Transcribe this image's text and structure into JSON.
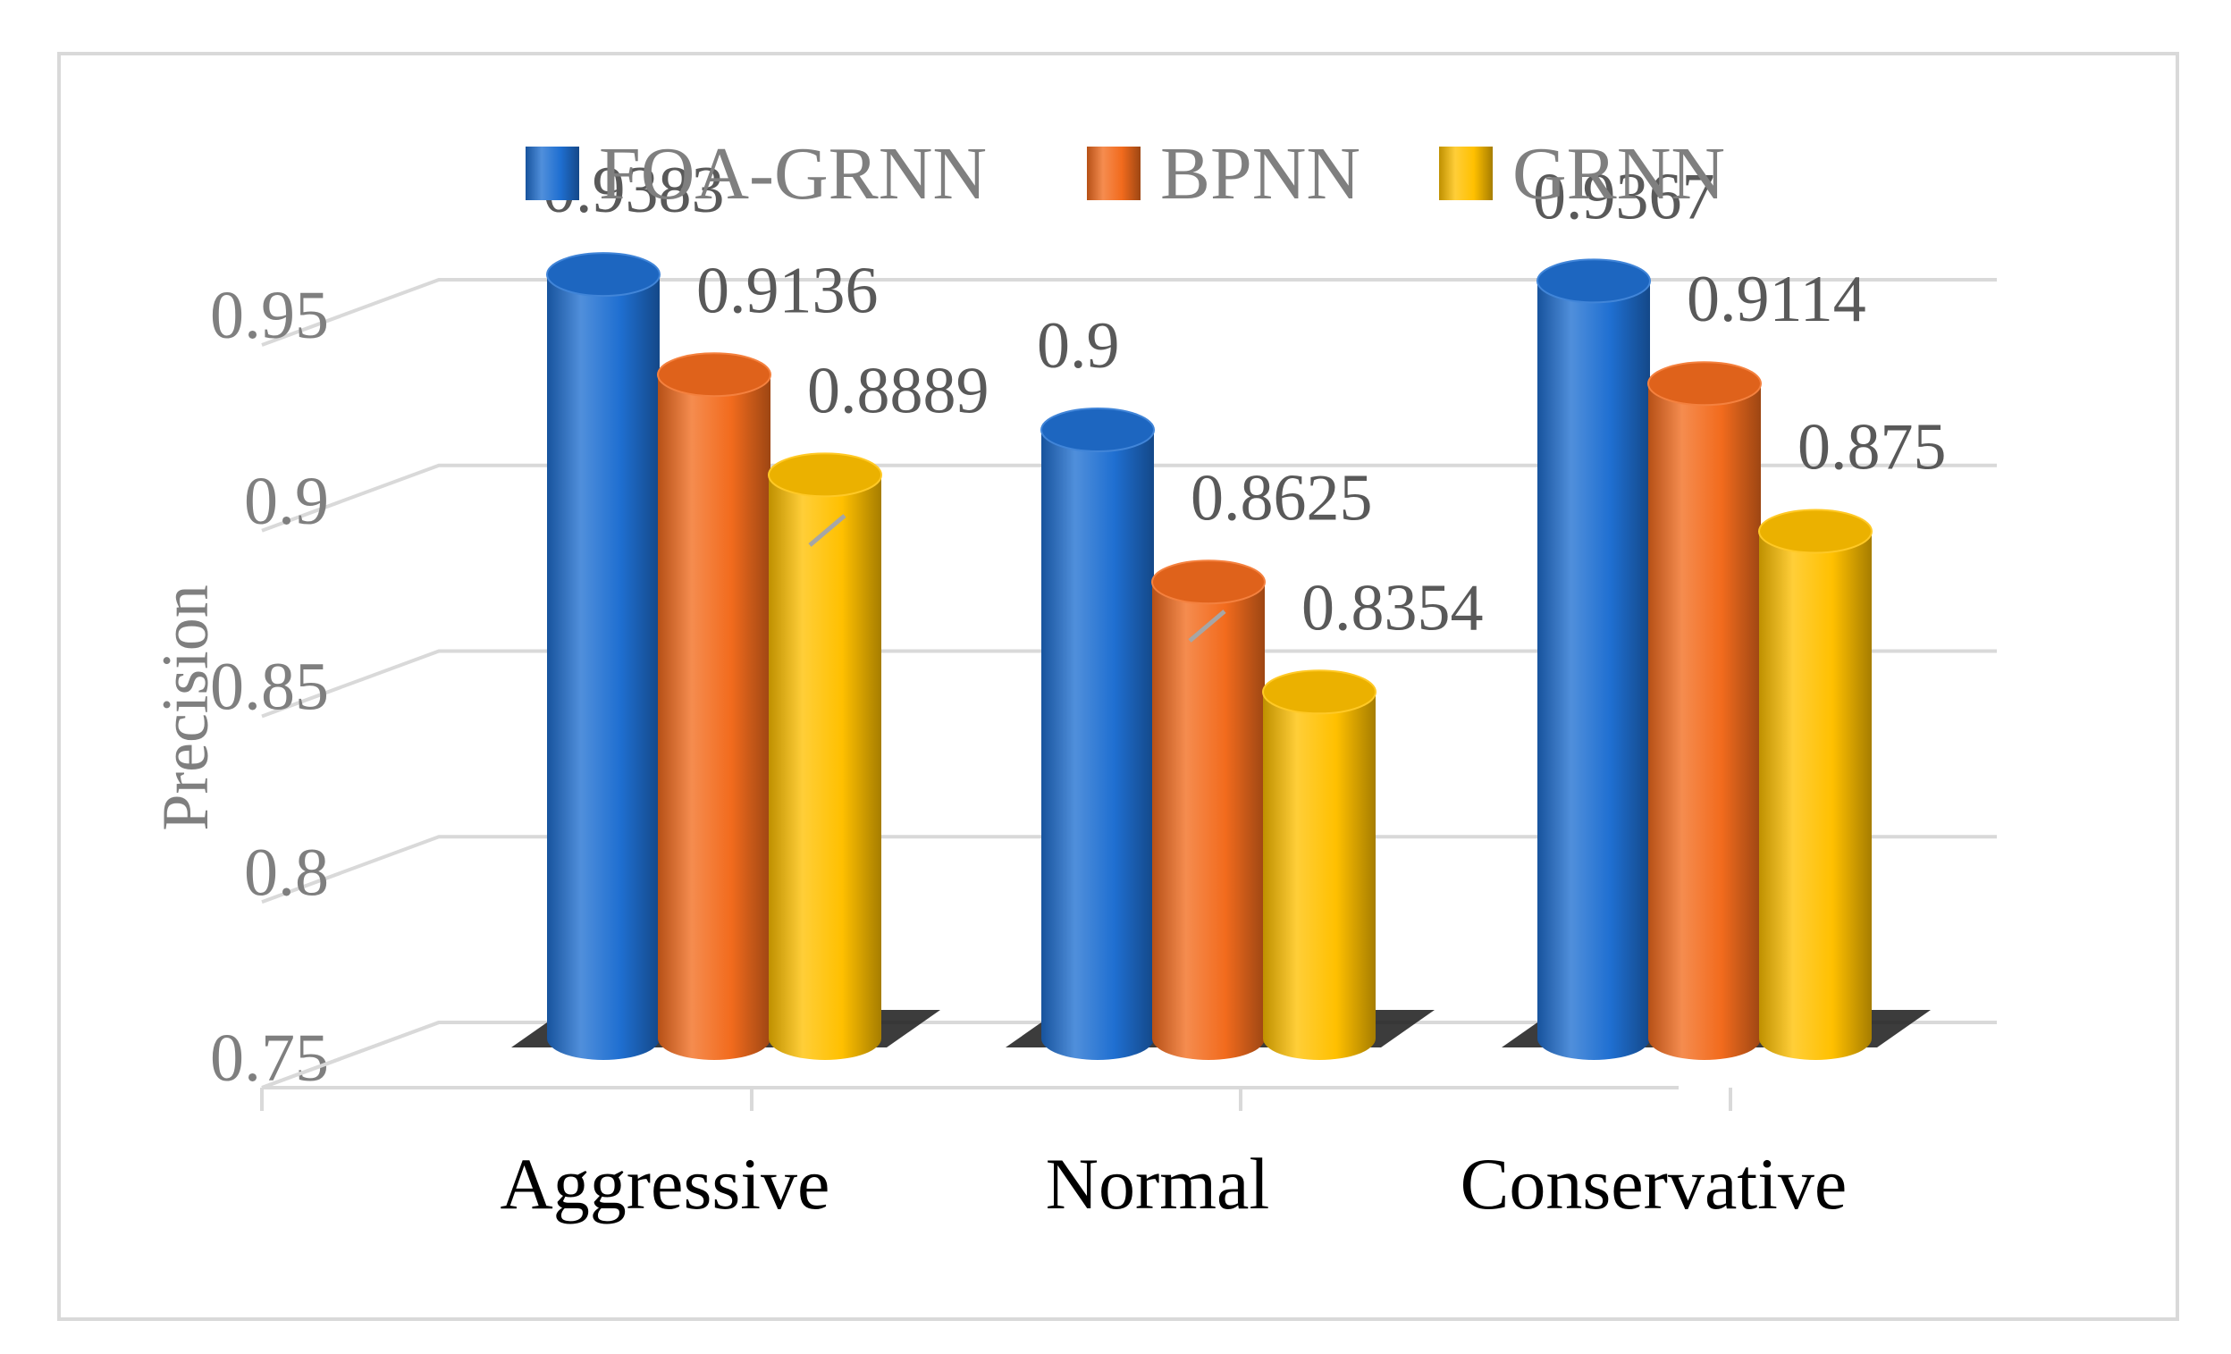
{
  "chart_data": {
    "type": "bar",
    "style": "3d-cylinder",
    "title": "",
    "xlabel": "",
    "ylabel": "Precision",
    "ylim": [
      0.75,
      0.95
    ],
    "yticks": [
      0.75,
      0.8,
      0.85,
      0.9,
      0.95
    ],
    "ytick_labels": [
      "0.75",
      "0.8",
      "0.85",
      "0.9",
      "0.95"
    ],
    "grid": true,
    "legend_position": "top",
    "categories": [
      "Aggressive",
      "Normal",
      "Conservative"
    ],
    "series": [
      {
        "name": "FOA-GRNN",
        "color": "#1f6fd1",
        "values": [
          0.9383,
          0.9,
          0.9367
        ],
        "labels": [
          "0.9383",
          "0.9",
          "0.9367"
        ]
      },
      {
        "name": "BPNN",
        "color": "#f26b1d",
        "values": [
          0.9136,
          0.8625,
          0.9114
        ],
        "labels": [
          "0.9136",
          "0.8625",
          "0.9114"
        ]
      },
      {
        "name": "GRNN",
        "color": "#ffc000",
        "values": [
          0.8889,
          0.8354,
          0.875
        ],
        "labels": [
          "0.8889",
          "0.8354",
          "0.875"
        ]
      }
    ]
  }
}
